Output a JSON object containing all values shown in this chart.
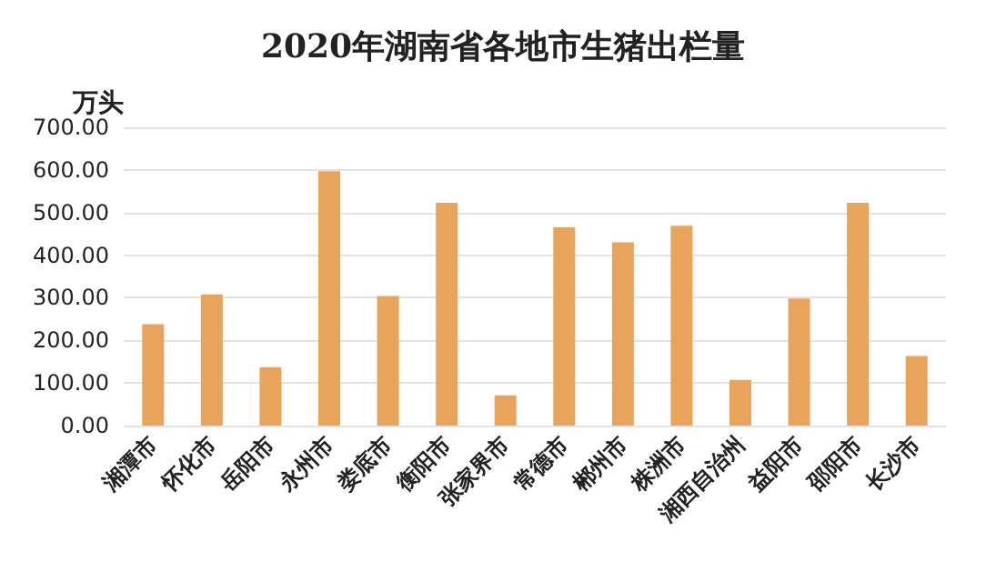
{
  "chart_data": {
    "type": "bar",
    "title": "2020年湖南省各地市生猪出栏量",
    "ylabel": "万头",
    "categories": [
      "湘潭市",
      "怀化市",
      "岳阳市",
      "永州市",
      "娄底市",
      "衡阳市",
      "张家界市",
      "常德市",
      "郴州市",
      "株洲市",
      "湘西自治州",
      "益阳市",
      "邵阳市",
      "长沙市"
    ],
    "values": [
      238,
      308,
      137,
      597,
      304,
      523,
      71,
      465,
      430,
      469,
      107,
      298,
      523,
      163
    ],
    "color": "#e8a35c",
    "ylim": [
      0,
      700
    ],
    "yticks": [
      {
        "value": 0,
        "label": "0.00"
      },
      {
        "value": 100,
        "label": "100.00"
      },
      {
        "value": 200,
        "label": "200.00"
      },
      {
        "value": 300,
        "label": "300.00"
      },
      {
        "value": 400,
        "label": "400.00"
      },
      {
        "value": 500,
        "label": "500.00"
      },
      {
        "value": 600,
        "label": "600.00"
      },
      {
        "value": 700,
        "label": "700.00"
      }
    ],
    "grid": "y"
  }
}
